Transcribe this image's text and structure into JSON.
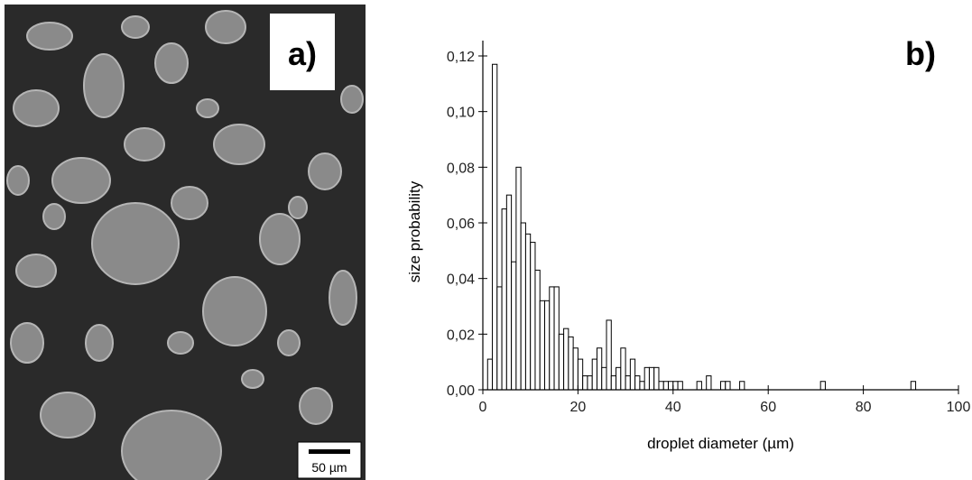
{
  "image_panel": {
    "label": "a)",
    "scale_bar": "50 µm"
  },
  "chart_data": {
    "type": "histogram",
    "annotation": "b)",
    "x_label": "droplet diameter (µm)",
    "y_label": "size probability",
    "color": "#ffffff",
    "edge_color": "#000000",
    "bins": [
      1,
      2,
      3,
      4,
      5,
      6,
      7,
      8,
      9,
      10,
      11,
      12,
      13,
      14,
      15,
      16,
      17,
      18,
      19,
      20,
      21,
      22,
      23,
      24,
      25,
      26,
      27,
      28,
      29,
      30,
      31,
      32,
      33,
      34,
      35,
      36,
      37,
      38,
      39,
      40,
      41,
      42,
      43,
      44,
      45,
      46,
      47,
      48,
      49,
      50,
      51,
      52,
      53,
      54,
      55,
      56,
      57,
      58,
      59,
      60,
      61,
      62,
      63,
      64,
      65,
      66,
      67,
      68,
      69,
      70,
      71,
      72,
      73,
      74,
      75,
      76,
      77,
      78,
      79,
      80,
      81,
      82,
      83,
      84,
      85,
      86,
      87,
      88,
      89,
      90,
      91
    ],
    "values": [
      0.011,
      0.117,
      0.037,
      0.065,
      0.07,
      0.046,
      0.08,
      0.06,
      0.056,
      0.053,
      0.043,
      0.032,
      0.032,
      0.037,
      0.037,
      0.02,
      0.022,
      0.019,
      0.015,
      0.011,
      0.005,
      0.005,
      0.011,
      0.015,
      0.008,
      0.025,
      0.005,
      0.008,
      0.015,
      0.005,
      0.011,
      0.005,
      0.003,
      0.008,
      0.008,
      0.008,
      0.003,
      0.003,
      0.003,
      0.003,
      0.003,
      0,
      0,
      0,
      0.003,
      0,
      0.005,
      0,
      0,
      0.003,
      0.003,
      0,
      0,
      0.003,
      0,
      0,
      0,
      0,
      0,
      0,
      0,
      0,
      0,
      0,
      0,
      0,
      0,
      0,
      0,
      0,
      0.003,
      0,
      0,
      0,
      0,
      0,
      0,
      0,
      0,
      0,
      0,
      0,
      0,
      0,
      0,
      0,
      0,
      0,
      0,
      0.003
    ],
    "xlim": [
      0,
      100
    ],
    "xticks": [
      0,
      20,
      40,
      60,
      80,
      100
    ],
    "ylim": [
      0,
      0.12
    ],
    "yticks": [
      {
        "value": 0,
        "label": "0,00"
      },
      {
        "value": 0.02,
        "label": "0,02"
      },
      {
        "value": 0.04,
        "label": "0,04"
      },
      {
        "value": 0.06,
        "label": "0,06"
      },
      {
        "value": 0.08,
        "label": "0,08"
      },
      {
        "value": 0.1,
        "label": "0,10"
      },
      {
        "value": 0.12,
        "label": "0,12"
      }
    ]
  }
}
